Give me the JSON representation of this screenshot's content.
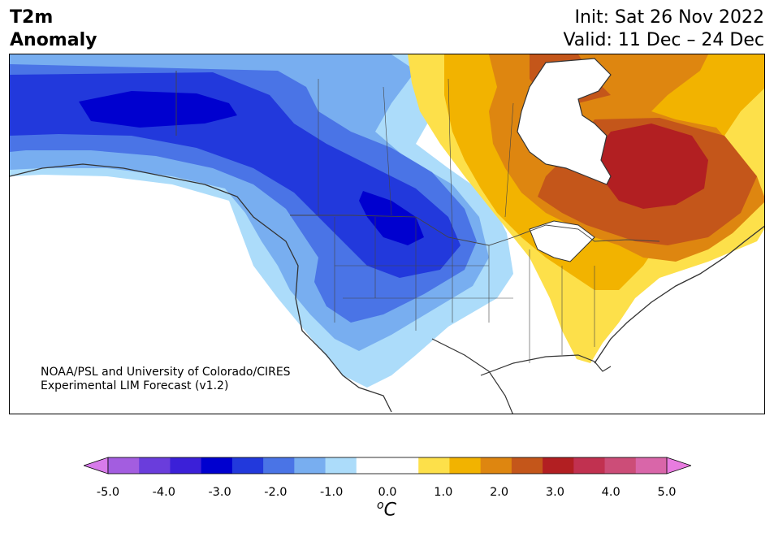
{
  "title": {
    "variable": "T2m",
    "subvariable": "Anomaly",
    "init": "Init: Sat 26 Nov 2022",
    "valid": "Valid: 11 Dec – 24 Dec"
  },
  "credit": {
    "line1": "NOAA/PSL and University of Colorado/CIRES",
    "line2": "Experimental LIM Forecast (v1.2)"
  },
  "colorbar": {
    "unit_superscript": "o",
    "unit": "C",
    "under_color": "#d77bea",
    "over_color": "#e87ce0",
    "colors": [
      "#a35de0",
      "#6a3ddc",
      "#3b20d8",
      "#0000cf",
      "#2239dc",
      "#4a74e6",
      "#78aef0",
      "#acdcfa",
      "#ffffff",
      "#ffffff",
      "#fde04a",
      "#f2b300",
      "#de8610",
      "#c4561a",
      "#b21f22",
      "#c13150",
      "#cc4d78",
      "#d966a9"
    ],
    "ticks": [
      "-5.0",
      "-4.0",
      "-3.0",
      "-2.0",
      "-1.0",
      "0.0",
      "1.0",
      "2.0",
      "3.0",
      "4.0",
      "5.0"
    ]
  },
  "map": {
    "colors": {
      "c_neg3": "#0000cf",
      "c_neg25": "#2239dc",
      "c_neg2": "#4a74e6",
      "c_neg15": "#78aef0",
      "c_neg1": "#acdcfa",
      "c_pos1": "#fde04a",
      "c_pos15": "#f2b300",
      "c_pos2": "#de8610",
      "c_pos25": "#c4561a",
      "c_pos3": "#b21f22"
    }
  }
}
